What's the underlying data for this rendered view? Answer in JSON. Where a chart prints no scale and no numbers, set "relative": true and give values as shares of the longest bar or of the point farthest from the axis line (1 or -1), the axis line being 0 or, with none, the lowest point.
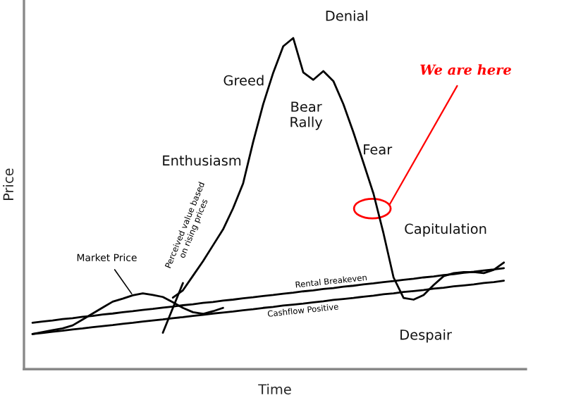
{
  "chart_data": {
    "type": "line",
    "relative": true,
    "xlabel": "Time",
    "ylabel": "Price",
    "categories": [
      null,
      null,
      null,
      null,
      null,
      null,
      null,
      null,
      null,
      null,
      null,
      null,
      null,
      null,
      null,
      null,
      null,
      null,
      null,
      null,
      null,
      null,
      null,
      null,
      null,
      null,
      null,
      null,
      null,
      null,
      null,
      null,
      null,
      null,
      null,
      null,
      null,
      null,
      null,
      null,
      null,
      null,
      null,
      null,
      null,
      null,
      null,
      null
    ],
    "series": [
      {
        "color": "#000000",
        "values": [
          null,
          null,
          null,
          null,
          null,
          null,
          null,
          null,
          null,
          null,
          null,
          null,
          null,
          null,
          0.216,
          0.238,
          0.282,
          0.326,
          0.374,
          0.422,
          0.486,
          0.561,
          0.686,
          0.8,
          0.895,
          0.975,
          1.0,
          0.896,
          0.874,
          0.9,
          0.87,
          0.8,
          0.715,
          0.623,
          0.53,
          0.41,
          0.277,
          0.215,
          0.21,
          0.224,
          0.254,
          0.281,
          0.29,
          0.293,
          0.293,
          0.29,
          0.3,
          0.322
        ]
      },
      {
        "name": "Market Price",
        "color": "#000000",
        "values": [
          0.106,
          0.112,
          0.118,
          0.123,
          0.132,
          0.15,
          0.168,
          0.186,
          0.204,
          0.213,
          0.223,
          0.229,
          0.224,
          0.218,
          0.202,
          0.185,
          0.172,
          0.167,
          0.175,
          0.185,
          null,
          null,
          null,
          null,
          null,
          null,
          null,
          null,
          null,
          null,
          null,
          null,
          null,
          null,
          null,
          null,
          null,
          null,
          null,
          null,
          null,
          null,
          null,
          null,
          null,
          null,
          null,
          null
        ]
      },
      {
        "name": "Perceived value based on rising prices",
        "color": "#000000",
        "values": [
          null,
          null,
          null,
          null,
          null,
          null,
          null,
          null,
          null,
          null,
          null,
          null,
          null,
          0.11,
          0.185,
          0.26,
          null,
          null,
          null,
          null,
          null,
          null,
          null,
          null,
          null,
          null,
          null,
          null,
          null,
          null,
          null,
          null,
          null,
          null,
          null,
          null,
          null,
          null,
          null,
          null,
          null,
          null,
          null,
          null,
          null,
          null,
          null,
          null
        ]
      },
      {
        "name": "Rental Breakeven",
        "color": "#000000",
        "values": [
          0.14,
          0.144,
          0.147,
          0.151,
          0.154,
          0.158,
          0.161,
          0.165,
          0.168,
          0.172,
          0.175,
          0.179,
          0.182,
          0.186,
          0.189,
          0.193,
          0.196,
          0.2,
          0.203,
          0.207,
          0.21,
          0.214,
          0.217,
          0.221,
          0.224,
          0.228,
          0.231,
          0.235,
          0.238,
          0.242,
          0.245,
          0.249,
          0.252,
          0.256,
          0.259,
          0.263,
          0.266,
          0.27,
          0.273,
          0.277,
          0.28,
          0.284,
          0.287,
          0.291,
          0.294,
          0.298,
          0.301,
          0.305
        ]
      },
      {
        "name": "Cashflow Positive",
        "color": "#000000",
        "values": [
          0.106,
          0.109,
          0.113,
          0.116,
          0.12,
          0.123,
          0.127,
          0.13,
          0.133,
          0.137,
          0.14,
          0.144,
          0.147,
          0.15,
          0.154,
          0.157,
          0.161,
          0.164,
          0.168,
          0.171,
          0.174,
          0.178,
          0.181,
          0.185,
          0.188,
          0.192,
          0.195,
          0.198,
          0.202,
          0.205,
          0.209,
          0.212,
          0.215,
          0.219,
          0.222,
          0.226,
          0.229,
          0.233,
          0.236,
          0.239,
          0.243,
          0.246,
          0.25,
          0.253,
          0.256,
          0.26,
          0.263,
          0.267
        ]
      }
    ],
    "annotations": [
      "Greed",
      "Enthusiasm",
      "Denial",
      "Bear\nRally",
      "Fear",
      "Capitulation",
      "Despair",
      "We are here"
    ]
  }
}
